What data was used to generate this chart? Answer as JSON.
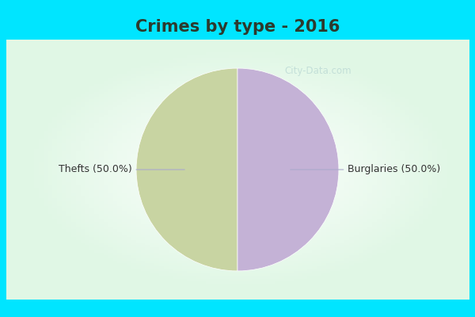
{
  "title": "Crimes by type - 2016",
  "slices": [
    50.0,
    50.0
  ],
  "labels": [
    "Thefts",
    "Burglaries"
  ],
  "colors": [
    "#c8d4a2",
    "#c4b2d6"
  ],
  "annotation_labels": [
    "Thefts (50.0%)",
    "Burglaries (50.0%)"
  ],
  "border_color": "#00e5ff",
  "title_bg_color": "#00e5ff",
  "title_color": "#2d3a2d",
  "title_fontsize": 15,
  "label_fontsize": 9,
  "startangle": 90,
  "border_width": 8,
  "watermark": "City-Data.com"
}
